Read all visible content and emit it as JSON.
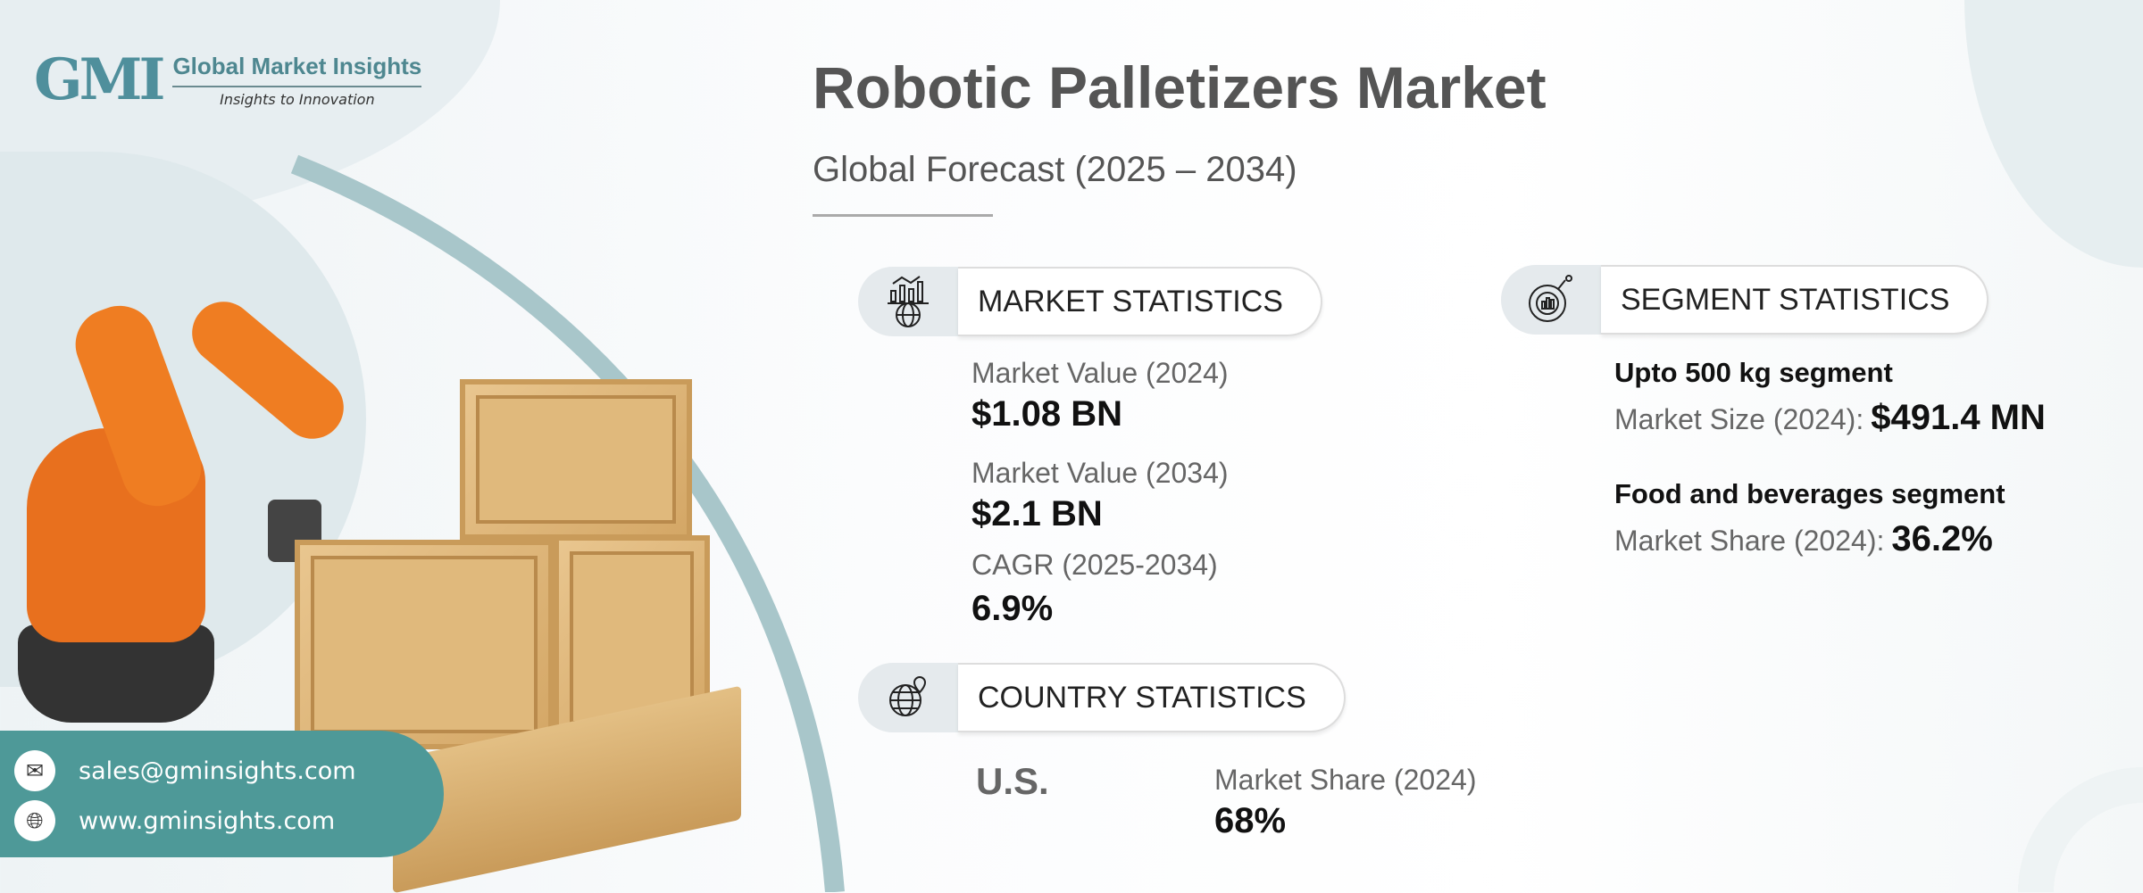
{
  "logo": {
    "mark": "GMI",
    "name": "Global Market Insights",
    "tagline": "Insights to Innovation"
  },
  "header": {
    "title": "Robotic Palletizers Market",
    "subtitle": "Global Forecast (2025 – 2034)"
  },
  "market_statistics": {
    "heading": "MARKET STATISTICS",
    "icon": "chart-globe-icon",
    "items": [
      {
        "label": "Market Value (2024)",
        "value": "$1.08 BN"
      },
      {
        "label": "Market Value (2034)",
        "value": "$2.1 BN"
      },
      {
        "label": "CAGR (2025-2034)",
        "value": "6.9%"
      }
    ]
  },
  "segment_statistics": {
    "heading": "SEGMENT STATISTICS",
    "icon": "pie-chart-icon",
    "items": [
      {
        "name": "Upto 500 kg segment",
        "label": "Market Size (2024):",
        "value": "$491.4 MN"
      },
      {
        "name": "Food and beverages segment",
        "label": "Market Share (2024):",
        "value": "36.2%"
      }
    ]
  },
  "country_statistics": {
    "heading": "COUNTRY STATISTICS",
    "icon": "globe-pin-icon",
    "country": "U.S.",
    "label": "Market Share (2024)",
    "value": "68%"
  },
  "contact": {
    "email": "sales@gminsights.com",
    "website": "www.gminsights.com"
  },
  "colors": {
    "accent": "#4e9998",
    "arc": "#a8c6ca",
    "robot": "#e8701e",
    "crate": "#dcb275"
  }
}
